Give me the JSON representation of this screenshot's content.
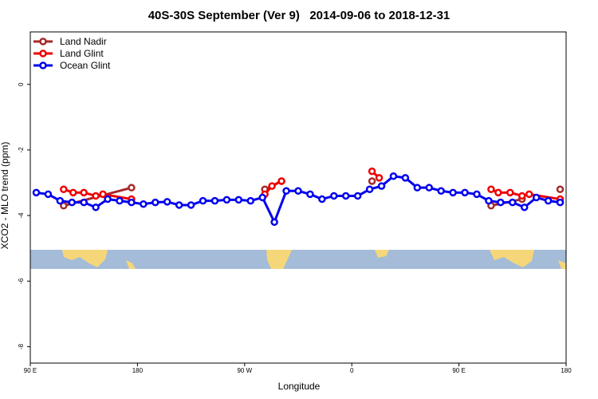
{
  "chart_data": {
    "type": "line",
    "title": "40S-30S September (Ver 9)   2014-09-06 to 2018-12-31",
    "x_label": "Longitude",
    "y_label": "XCO2 - MLO trend (ppm)",
    "xlim": [
      90,
      540
    ],
    "ylim": [
      -8.5,
      1.6
    ],
    "xticks": [
      {
        "value": 90,
        "label": "90 E"
      },
      {
        "value": 180,
        "label": "180"
      },
      {
        "value": 270,
        "label": "90 W"
      },
      {
        "value": 360,
        "label": "0"
      },
      {
        "value": 450,
        "label": "90 E"
      },
      {
        "value": 540,
        "label": "180"
      }
    ],
    "yticks": [
      0,
      -2,
      -4,
      -6,
      -8
    ],
    "legend": "top-left",
    "series": [
      {
        "name": "Land Nadir",
        "color": "#a52a2a",
        "x": [
          118,
          175,
          230,
          287,
          301,
          340,
          377,
          440,
          477,
          503,
          520,
          535
        ],
        "values": [
          -3.7,
          -3.15,
          null,
          -3.2,
          -2.95,
          null,
          -2.95,
          null,
          -3.7,
          -3.5,
          null,
          -3.2
        ]
      },
      {
        "name": "Land Glint",
        "color": "#ee0000",
        "x": [
          118,
          126,
          135,
          145,
          151,
          175,
          230,
          287,
          293,
          301,
          340,
          377,
          383,
          440,
          477,
          483,
          493,
          503,
          509,
          535
        ],
        "values": [
          -3.2,
          -3.3,
          -3.3,
          -3.4,
          -3.35,
          -3.5,
          null,
          -3.35,
          -3.1,
          -2.95,
          null,
          -2.65,
          -2.85,
          null,
          -3.2,
          -3.3,
          -3.3,
          -3.4,
          -3.35,
          -3.5
        ]
      },
      {
        "name": "Ocean Glint",
        "color": "#0000ee",
        "x": [
          95,
          105,
          115,
          125,
          135,
          145,
          155,
          165,
          175,
          185,
          195,
          205,
          215,
          225,
          235,
          245,
          255,
          265,
          275,
          285,
          295,
          305,
          315,
          325,
          335,
          345,
          355,
          365,
          375,
          385,
          395,
          405,
          415,
          425,
          435,
          445,
          455,
          465,
          475,
          485,
          495,
          505,
          515,
          525,
          535
        ],
        "values": [
          -3.3,
          -3.35,
          -3.55,
          -3.6,
          -3.6,
          -3.75,
          -3.5,
          -3.55,
          -3.6,
          -3.65,
          -3.6,
          -3.58,
          -3.68,
          -3.68,
          -3.55,
          -3.55,
          -3.52,
          -3.52,
          -3.55,
          -3.45,
          -4.2,
          -3.25,
          -3.25,
          -3.35,
          -3.5,
          -3.4,
          -3.4,
          -3.4,
          -3.2,
          -3.1,
          -2.8,
          -2.85,
          -3.15,
          -3.15,
          -3.25,
          -3.3,
          -3.3,
          -3.35,
          -3.55,
          -3.6,
          -3.6,
          -3.75,
          -3.45,
          -3.55,
          -3.6
        ]
      }
    ]
  }
}
